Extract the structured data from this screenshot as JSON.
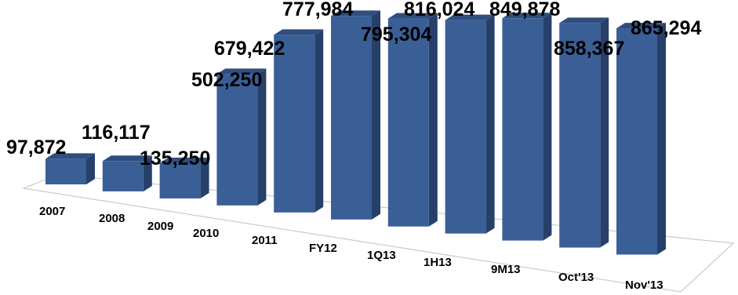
{
  "chart_data": {
    "type": "bar",
    "categories": [
      "2007",
      "2008",
      "2009",
      "2010",
      "2011",
      "FY12",
      "1Q13",
      "1H13",
      "9M13",
      "Oct'13",
      "Nov'13"
    ],
    "values": [
      97872,
      116117,
      135250,
      502250,
      679422,
      777984,
      795304,
      816024,
      849878,
      858367,
      865294
    ],
    "value_labels": [
      "97,872",
      "116,117",
      "135,250",
      "502,250",
      "679,422",
      "777,984",
      "795,304",
      "816,024",
      "849,878",
      "858,367",
      "865,294"
    ],
    "title": "",
    "xlabel": "",
    "ylabel": "",
    "grid": false,
    "legend": "none",
    "style": "3d-column",
    "colors": {
      "front": "#3a5f97",
      "side": "#27406a",
      "top": "#2f4e7e",
      "floor_line": "#c9c9c9"
    }
  }
}
